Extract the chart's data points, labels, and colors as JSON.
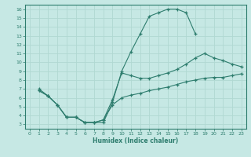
{
  "bg_color": "#c6e8e4",
  "line_color": "#2e7d6e",
  "grid_color": "#b0d8d2",
  "xlabel": "Humidex (Indice chaleur)",
  "xlim": [
    -0.5,
    23.5
  ],
  "ylim": [
    2.5,
    16.5
  ],
  "xticks": [
    0,
    1,
    2,
    3,
    4,
    5,
    6,
    7,
    8,
    9,
    10,
    11,
    12,
    13,
    14,
    15,
    16,
    17,
    18,
    19,
    20,
    21,
    22,
    23
  ],
  "yticks": [
    3,
    4,
    5,
    6,
    7,
    8,
    9,
    10,
    11,
    12,
    13,
    14,
    15,
    16
  ],
  "line1_x": [
    1,
    2,
    3,
    4,
    5,
    6,
    7,
    8,
    9,
    10,
    11,
    12,
    13,
    14,
    15,
    16,
    17,
    18
  ],
  "line1_y": [
    7,
    6.2,
    5.2,
    3.8,
    3.8,
    3.2,
    3.2,
    3.2,
    5.5,
    9.0,
    11.2,
    13.2,
    15.2,
    15.6,
    16.0,
    16.0,
    15.6,
    13.2
  ],
  "line2_x": [
    1,
    2,
    3,
    4,
    5,
    6,
    7,
    8,
    9,
    10,
    11,
    12,
    13,
    14,
    15,
    16,
    17,
    18,
    19,
    20,
    21,
    22,
    23
  ],
  "line2_y": [
    6.8,
    6.2,
    5.2,
    3.8,
    3.8,
    3.2,
    3.2,
    3.5,
    5.8,
    8.8,
    8.5,
    8.2,
    8.2,
    8.5,
    8.8,
    9.2,
    9.8,
    10.5,
    11.0,
    10.5,
    10.2,
    9.8,
    9.5
  ],
  "line3_x": [
    1,
    2,
    3,
    4,
    5,
    6,
    7,
    8,
    9,
    10,
    11,
    12,
    13,
    14,
    15,
    16,
    17,
    18,
    19,
    20,
    21,
    22,
    23
  ],
  "line3_y": [
    6.8,
    6.2,
    5.2,
    3.8,
    3.8,
    3.2,
    3.2,
    3.5,
    5.2,
    6.0,
    6.3,
    6.5,
    6.8,
    7.0,
    7.2,
    7.5,
    7.8,
    8.0,
    8.2,
    8.3,
    8.3,
    8.5,
    8.7
  ]
}
